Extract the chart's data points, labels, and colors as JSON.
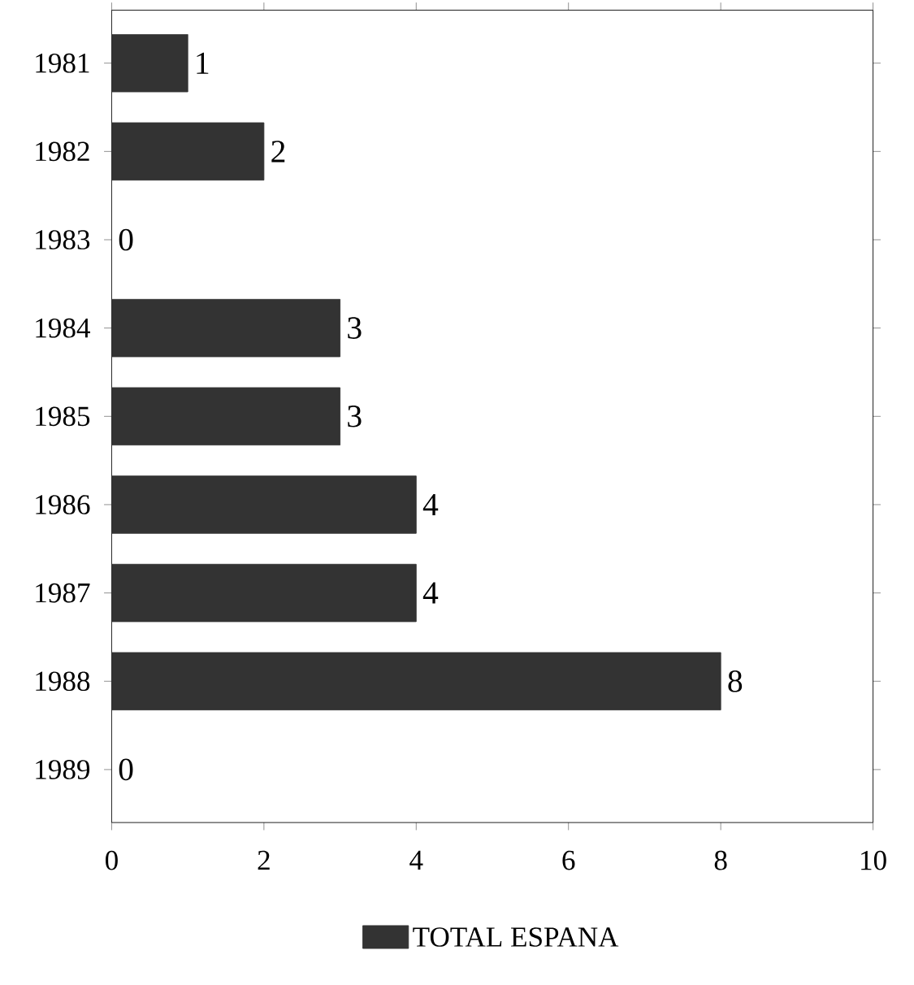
{
  "chart_data": {
    "type": "bar",
    "orientation": "horizontal",
    "categories": [
      "1981",
      "1982",
      "1983",
      "1984",
      "1985",
      "1986",
      "1987",
      "1988",
      "1989"
    ],
    "series": [
      {
        "name": "TOTAL ESPANA",
        "color": "#333333",
        "values": [
          1,
          2,
          0,
          3,
          3,
          4,
          4,
          8,
          0
        ]
      }
    ],
    "xlim": [
      0,
      10
    ],
    "xticks": [
      0,
      2,
      4,
      6,
      8,
      10
    ],
    "data_labels": true,
    "legend": "bottom",
    "grid": false
  }
}
